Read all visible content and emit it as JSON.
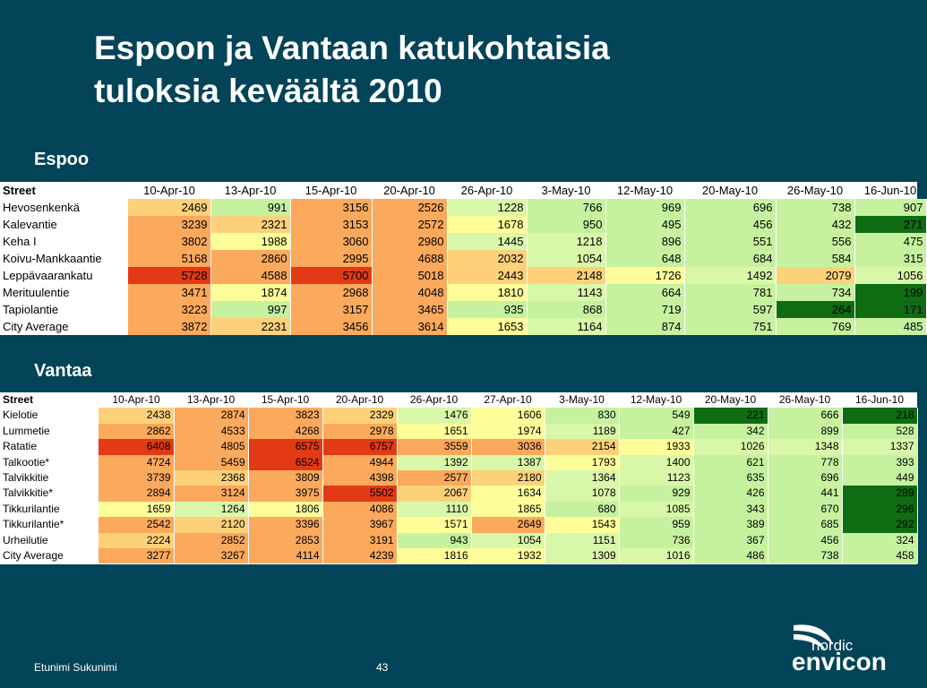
{
  "title_lines": [
    "Espoon ja Vantaan katukohtaisia",
    "tuloksia keväältä 2010"
  ],
  "colors": {
    "background": "#034459",
    "scale": {
      "dark_green": "#0f6c13",
      "green": "#c6f2a0",
      "light_green": "#d9f7a9",
      "yellow": "#fdfd99",
      "light_orange": "#fdd17a",
      "orange": "#fba95c",
      "red": "#e23a14"
    }
  },
  "espoo": {
    "heading": "Espoo",
    "street_header": "Street",
    "dates": [
      "10-Apr-10",
      "13-Apr-10",
      "15-Apr-10",
      "20-Apr-10",
      "26-Apr-10",
      "3-May-10",
      "12-May-10",
      "20-May-10",
      "26-May-10",
      "16-Jun-10"
    ],
    "rows": [
      {
        "street": "Hevosenkenkä",
        "values": [
          2469,
          991,
          3156,
          2526,
          1228,
          766,
          969,
          696,
          738,
          907
        ]
      },
      {
        "street": "Kalevantie",
        "values": [
          3239,
          2321,
          3153,
          2572,
          1678,
          950,
          495,
          456,
          432,
          271
        ]
      },
      {
        "street": "Keha I",
        "values": [
          3802,
          1988,
          3060,
          2980,
          1445,
          1218,
          896,
          551,
          556,
          475
        ]
      },
      {
        "street": "Koivu-Mankkaantie",
        "values": [
          5168,
          2860,
          2995,
          4688,
          2032,
          1054,
          648,
          684,
          584,
          315
        ]
      },
      {
        "street": "Leppävaarankatu",
        "values": [
          5728,
          4588,
          5700,
          5018,
          2443,
          2148,
          1726,
          1492,
          2079,
          1056
        ]
      },
      {
        "street": "Merituulentie",
        "values": [
          3471,
          1874,
          2968,
          4048,
          1810,
          1143,
          664,
          781,
          734,
          199
        ]
      },
      {
        "street": "Tapiolantie",
        "values": [
          3223,
          997,
          3157,
          3465,
          935,
          868,
          719,
          597,
          264,
          171
        ]
      },
      {
        "street": "City Average",
        "values": [
          3872,
          2231,
          3456,
          3614,
          1653,
          1164,
          874,
          751,
          769,
          485
        ]
      }
    ]
  },
  "vantaa": {
    "heading": "Vantaa",
    "street_header": "Street",
    "dates": [
      "10-Apr-10",
      "13-Apr-10",
      "15-Apr-10",
      "20-Apr-10",
      "26-Apr-10",
      "27-Apr-10",
      "3-May-10",
      "12-May-10",
      "20-May-10",
      "26-May-10",
      "16-Jun-10"
    ],
    "rows": [
      {
        "street": "Kielotie",
        "values": [
          2438,
          2874,
          3823,
          2329,
          1476,
          1606,
          830,
          549,
          221,
          666,
          218
        ]
      },
      {
        "street": "Lummetie",
        "values": [
          2862,
          4533,
          4268,
          2978,
          1651,
          1974,
          1189,
          427,
          342,
          899,
          528
        ]
      },
      {
        "street": "Ratatie",
        "values": [
          6408,
          4805,
          6575,
          6757,
          3559,
          3036,
          2154,
          1933,
          1026,
          1348,
          1337
        ]
      },
      {
        "street": "Talkootie*",
        "values": [
          4724,
          5459,
          6524,
          4944,
          1392,
          1387,
          1793,
          1400,
          621,
          778,
          393
        ]
      },
      {
        "street": "Talvikkitie",
        "values": [
          3739,
          2368,
          3809,
          4398,
          2577,
          2180,
          1364,
          1123,
          635,
          696,
          449
        ]
      },
      {
        "street": "Talvikkitie*",
        "values": [
          2894,
          3124,
          3975,
          5502,
          2067,
          1634,
          1078,
          929,
          426,
          441,
          289
        ]
      },
      {
        "street": "Tikkurilantie",
        "values": [
          1659,
          1264,
          1806,
          4086,
          1110,
          1865,
          680,
          1085,
          343,
          670,
          296
        ]
      },
      {
        "street": "Tikkurilantie*",
        "values": [
          2542,
          2120,
          3396,
          3967,
          1571,
          2649,
          1543,
          959,
          389,
          685,
          292
        ]
      },
      {
        "street": "Urheilutie",
        "values": [
          2224,
          2852,
          2853,
          3191,
          943,
          1054,
          1151,
          736,
          367,
          456,
          324
        ]
      },
      {
        "street": "City Average",
        "values": [
          3277,
          3267,
          4114,
          4239,
          1816,
          1932,
          1309,
          1016,
          486,
          738,
          458
        ]
      }
    ]
  },
  "footer": {
    "author": "Etunimi Sukunimi",
    "page_number": "43"
  },
  "logo": {
    "line1": "nordic",
    "line2": "envicon",
    "icon": "nordic-envicon-logo-icon"
  }
}
